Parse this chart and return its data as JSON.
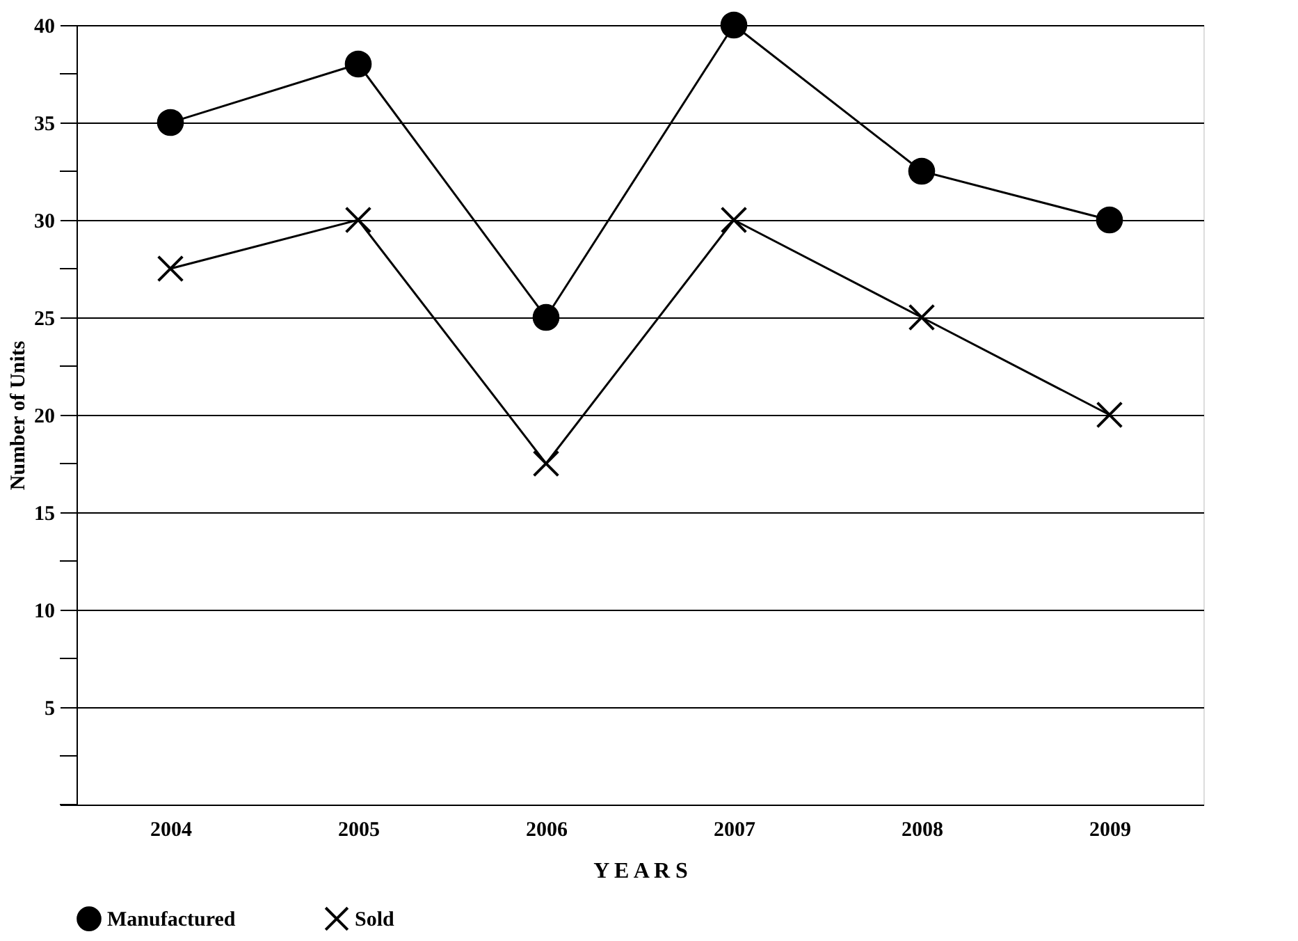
{
  "chart_data": {
    "type": "line",
    "xlabel": "Y E A R S",
    "ylabel": "Number of Units",
    "categories": [
      "2004",
      "2005",
      "2006",
      "2007",
      "2008",
      "2009"
    ],
    "series": [
      {
        "name": "Manufactured",
        "color": "#000000",
        "marker": "circle",
        "values": [
          35,
          38,
          25,
          40,
          32.5,
          30
        ]
      },
      {
        "name": "Sold",
        "color": "#000000",
        "marker": "cross",
        "values": [
          27.5,
          30,
          17.5,
          30,
          25,
          20
        ]
      }
    ],
    "ylim": [
      0,
      40
    ],
    "yticks": [
      {
        "value": 0,
        "label": null
      },
      {
        "value": 2.5,
        "label": null
      },
      5,
      {
        "value": 7.5,
        "label": null
      },
      10,
      {
        "value": 12.5,
        "label": null
      },
      15,
      {
        "value": 17.5,
        "label": null
      },
      20,
      {
        "value": 22.5,
        "label": null
      },
      25,
      {
        "value": 27.5,
        "label": null
      },
      30,
      {
        "value": 32.5,
        "label": null
      },
      35,
      {
        "value": 37.5,
        "label": null
      },
      40
    ],
    "grid": "y",
    "legend": "bottom",
    "line_style": "solid"
  }
}
